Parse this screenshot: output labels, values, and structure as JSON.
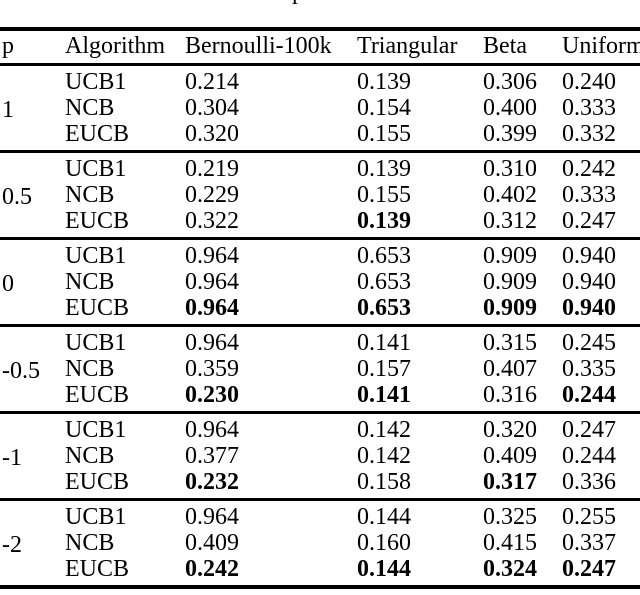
{
  "caption_fragment": "p",
  "table": {
    "columns": [
      "p",
      "Algorithm",
      "Bernoulli-100k",
      "Triangular",
      "Beta",
      "Uniform"
    ],
    "groups": [
      {
        "p": "1",
        "rows": [
          {
            "algorithm": "UCB1",
            "values": [
              "0.214",
              "0.139",
              "0.306",
              "0.240"
            ],
            "bold": [
              false,
              false,
              false,
              false
            ]
          },
          {
            "algorithm": "NCB",
            "values": [
              "0.304",
              "0.154",
              "0.400",
              "0.333"
            ],
            "bold": [
              false,
              false,
              false,
              false
            ]
          },
          {
            "algorithm": "EUCB",
            "values": [
              "0.320",
              "0.155",
              "0.399",
              "0.332"
            ],
            "bold": [
              false,
              false,
              false,
              false
            ]
          }
        ]
      },
      {
        "p": "0.5",
        "rows": [
          {
            "algorithm": "UCB1",
            "values": [
              "0.219",
              "0.139",
              "0.310",
              "0.242"
            ],
            "bold": [
              false,
              false,
              false,
              false
            ]
          },
          {
            "algorithm": "NCB",
            "values": [
              "0.229",
              "0.155",
              "0.402",
              "0.333"
            ],
            "bold": [
              false,
              false,
              false,
              false
            ]
          },
          {
            "algorithm": "EUCB",
            "values": [
              "0.322",
              "0.139",
              "0.312",
              "0.247"
            ],
            "bold": [
              false,
              true,
              false,
              false
            ]
          }
        ]
      },
      {
        "p": "0",
        "rows": [
          {
            "algorithm": "UCB1",
            "values": [
              "0.964",
              "0.653",
              "0.909",
              "0.940"
            ],
            "bold": [
              false,
              false,
              false,
              false
            ]
          },
          {
            "algorithm": "NCB",
            "values": [
              "0.964",
              "0.653",
              "0.909",
              "0.940"
            ],
            "bold": [
              false,
              false,
              false,
              false
            ]
          },
          {
            "algorithm": "EUCB",
            "values": [
              "0.964",
              "0.653",
              "0.909",
              "0.940"
            ],
            "bold": [
              true,
              true,
              true,
              true
            ]
          }
        ]
      },
      {
        "p": "-0.5",
        "rows": [
          {
            "algorithm": "UCB1",
            "values": [
              "0.964",
              "0.141",
              "0.315",
              "0.245"
            ],
            "bold": [
              false,
              false,
              false,
              false
            ]
          },
          {
            "algorithm": "NCB",
            "values": [
              "0.359",
              "0.157",
              "0.407",
              "0.335"
            ],
            "bold": [
              false,
              false,
              false,
              false
            ]
          },
          {
            "algorithm": "EUCB",
            "values": [
              "0.230",
              "0.141",
              "0.316",
              "0.244"
            ],
            "bold": [
              true,
              true,
              false,
              true
            ]
          }
        ]
      },
      {
        "p": "-1",
        "rows": [
          {
            "algorithm": "UCB1",
            "values": [
              "0.964",
              "0.142",
              "0.320",
              "0.247"
            ],
            "bold": [
              false,
              false,
              false,
              false
            ]
          },
          {
            "algorithm": "NCB",
            "values": [
              "0.377",
              "0.142",
              "0.409",
              "0.244"
            ],
            "bold": [
              false,
              false,
              false,
              false
            ]
          },
          {
            "algorithm": "EUCB",
            "values": [
              "0.232",
              "0.158",
              "0.317",
              "0.336"
            ],
            "bold": [
              true,
              false,
              true,
              false
            ]
          }
        ]
      },
      {
        "p": "-2",
        "rows": [
          {
            "algorithm": "UCB1",
            "values": [
              "0.964",
              "0.144",
              "0.325",
              "0.255"
            ],
            "bold": [
              false,
              false,
              false,
              false
            ]
          },
          {
            "algorithm": "NCB",
            "values": [
              "0.409",
              "0.160",
              "0.415",
              "0.337"
            ],
            "bold": [
              false,
              false,
              false,
              false
            ]
          },
          {
            "algorithm": "EUCB",
            "values": [
              "0.242",
              "0.144",
              "0.324",
              "0.247"
            ],
            "bold": [
              true,
              true,
              true,
              true
            ]
          }
        ]
      }
    ]
  }
}
